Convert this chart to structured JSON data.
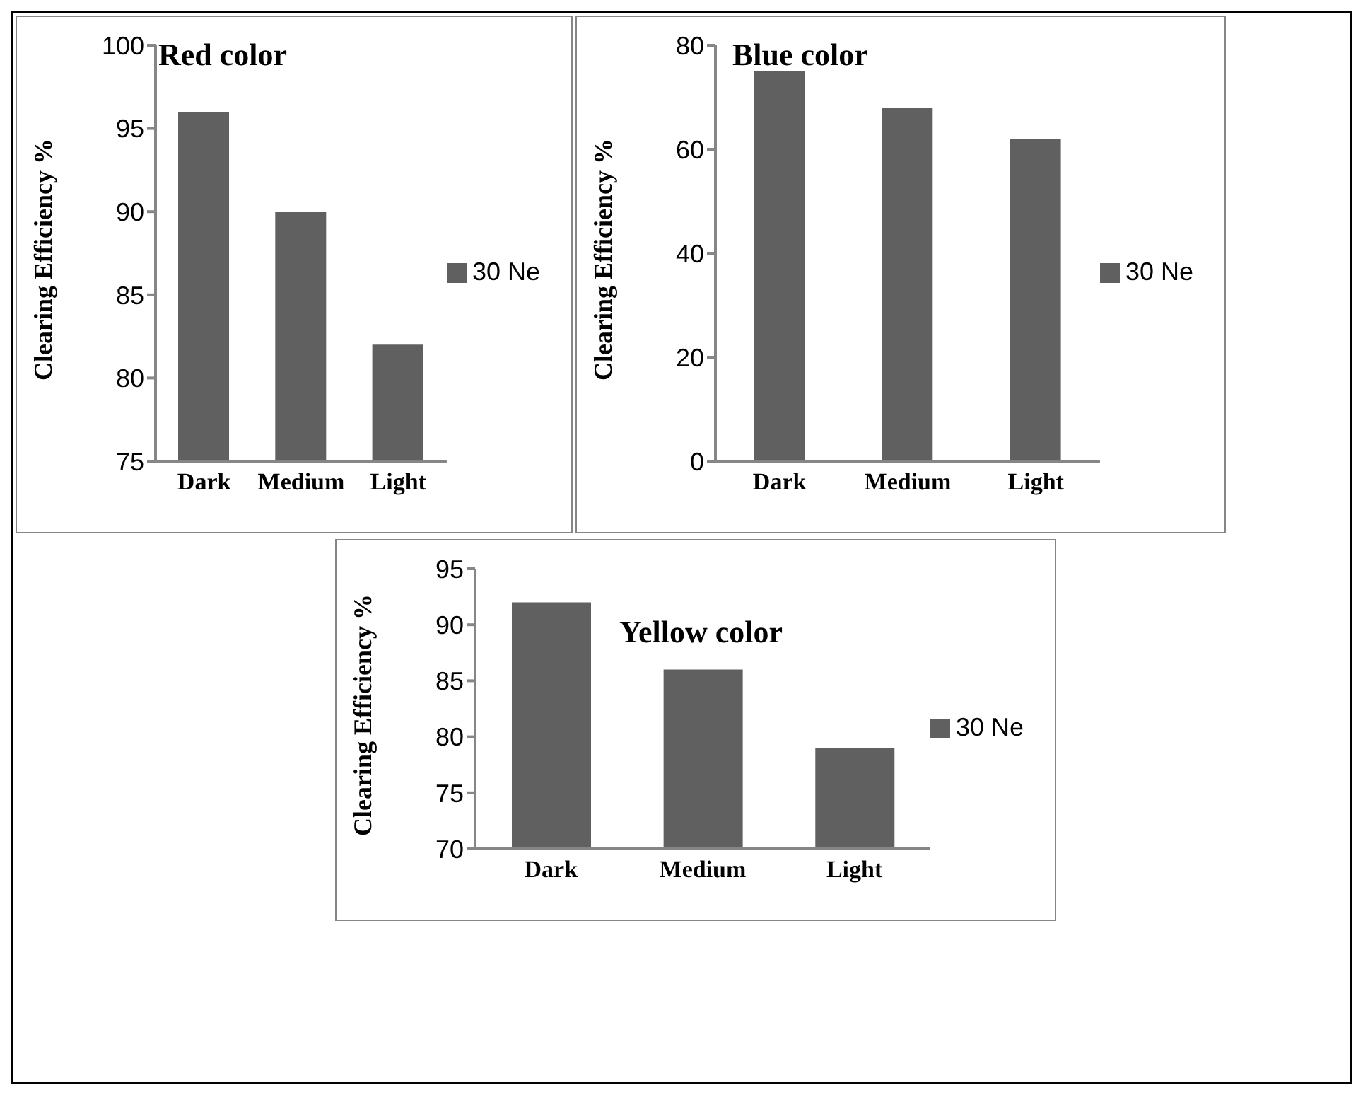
{
  "chart_data": [
    {
      "type": "bar",
      "title": "Red color",
      "ylabel": "Clearing Efficiency %",
      "categories": [
        "Dark",
        "Medium",
        "Light"
      ],
      "series": [
        {
          "name": "30 Ne",
          "color": "#606060",
          "values": [
            96,
            90,
            82
          ]
        }
      ],
      "ylim": [
        75,
        100
      ],
      "yticks": [
        75,
        80,
        85,
        90,
        95,
        100
      ],
      "grid": false,
      "legend": "right"
    },
    {
      "type": "bar",
      "title": "Blue color",
      "ylabel": "Clearing Efficiency %",
      "categories": [
        "Dark",
        "Medium",
        "Light"
      ],
      "series": [
        {
          "name": "30 Ne",
          "color": "#606060",
          "values": [
            75,
            68,
            62
          ]
        }
      ],
      "ylim": [
        0,
        80
      ],
      "yticks": [
        0,
        20,
        40,
        60,
        80
      ],
      "grid": false,
      "legend": "right"
    },
    {
      "type": "bar",
      "title": "Yellow color",
      "ylabel": "Clearing Efficiency %",
      "categories": [
        "Dark",
        "Medium",
        "Light"
      ],
      "series": [
        {
          "name": "30 Ne",
          "color": "#606060",
          "values": [
            92,
            86,
            79
          ]
        }
      ],
      "ylim": [
        70,
        95
      ],
      "yticks": [
        70,
        75,
        80,
        85,
        90,
        95
      ],
      "grid": false,
      "legend": "right"
    }
  ]
}
